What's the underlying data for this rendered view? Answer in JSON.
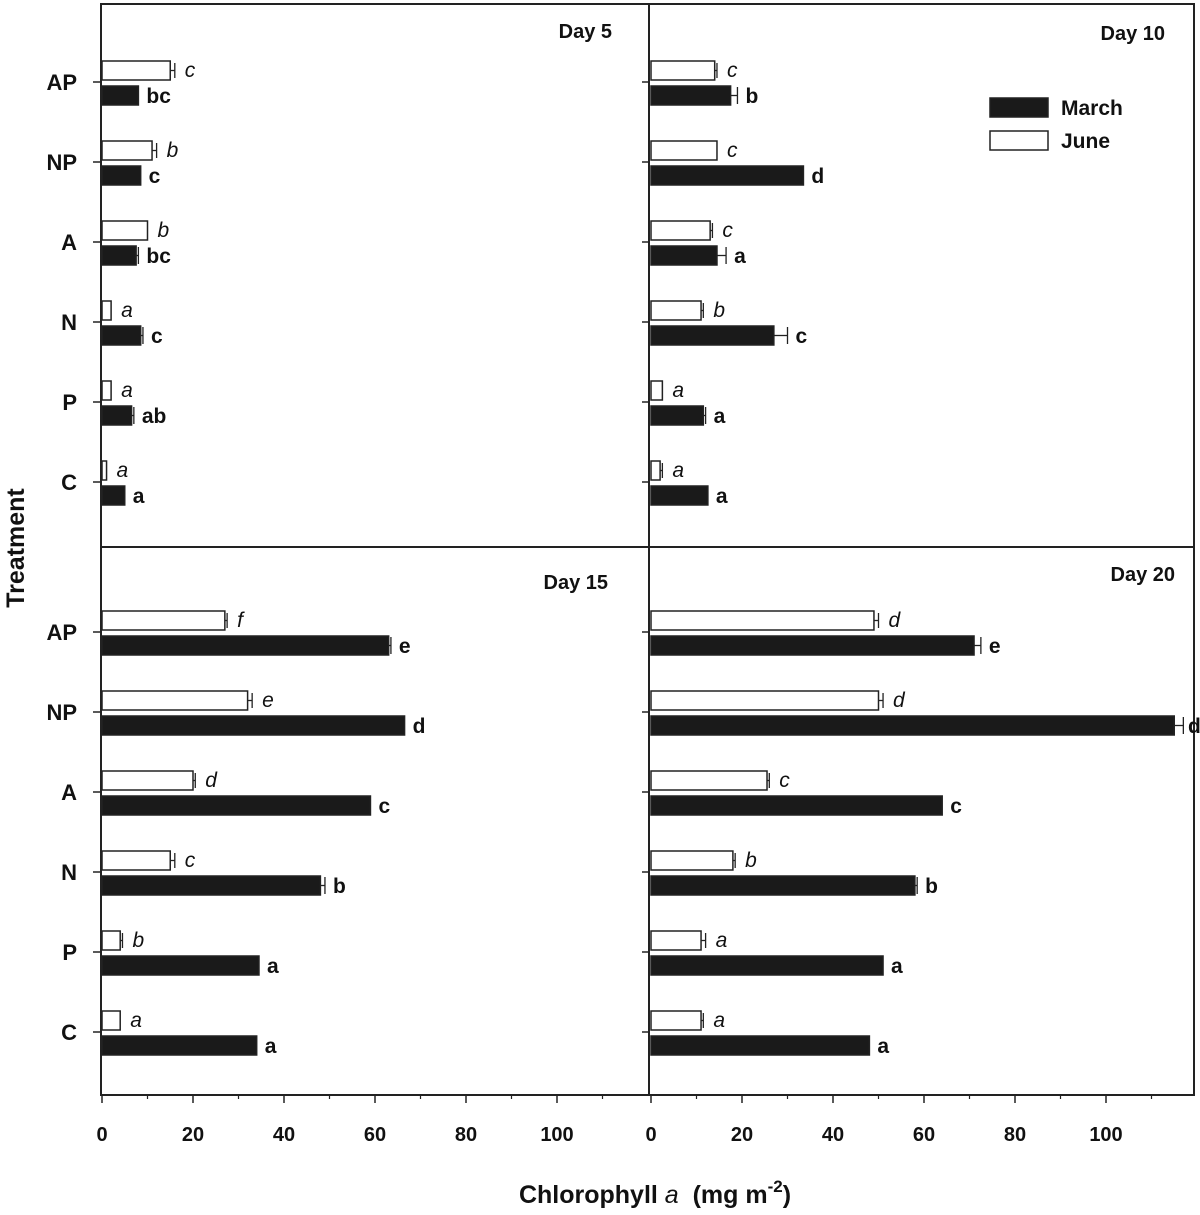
{
  "figure": {
    "ylabel": "Treatment",
    "xlabel_main": "Chlorophyll ",
    "xlabel_italic": "a",
    "xlabel_unit": "  (mg m",
    "xlabel_sup": "-2",
    "xlabel_close": ")",
    "legend": [
      {
        "name": "March",
        "color": "#1a1a1a"
      },
      {
        "name": "June",
        "color": "#ffffff"
      }
    ]
  },
  "chart_data": [
    {
      "type": "bar",
      "orientation": "horizontal",
      "title": "Day 5",
      "categories": [
        "AP",
        "NP",
        "A",
        "N",
        "P",
        "C"
      ],
      "xlim": [
        0,
        120
      ],
      "xticks": [
        0,
        20,
        40,
        60,
        80,
        100
      ],
      "series": [
        {
          "name": "June",
          "values": [
            15,
            11,
            10,
            2,
            2,
            1
          ],
          "errors": [
            1,
            1,
            0,
            0,
            0,
            0
          ],
          "labels": [
            "c",
            "b",
            "b",
            "a",
            "a",
            "a"
          ]
        },
        {
          "name": "March",
          "values": [
            8,
            8.5,
            7.5,
            8.5,
            6.5,
            5
          ],
          "errors": [
            0,
            0,
            0.5,
            0.5,
            0.5,
            0
          ],
          "labels": [
            "bc",
            "c",
            "bc",
            "c",
            "ab",
            "a"
          ]
        }
      ]
    },
    {
      "type": "bar",
      "orientation": "horizontal",
      "title": "Day 10",
      "categories": [
        "AP",
        "NP",
        "A",
        "N",
        "P",
        "C"
      ],
      "xlim": [
        0,
        120
      ],
      "xticks": [
        0,
        20,
        40,
        60,
        80,
        100
      ],
      "series": [
        {
          "name": "June",
          "values": [
            14,
            14.5,
            13,
            11,
            2.5,
            2
          ],
          "errors": [
            0.5,
            0,
            0.5,
            0.5,
            0,
            0.5
          ],
          "labels": [
            "c",
            "c",
            "c",
            "b",
            "a",
            "a"
          ]
        },
        {
          "name": "March",
          "values": [
            17.5,
            33.5,
            14.5,
            27,
            11.5,
            12.5
          ],
          "errors": [
            1.5,
            0,
            2,
            3,
            0.5,
            0
          ],
          "labels": [
            "b",
            "d",
            "a",
            "c",
            "a",
            "a"
          ]
        }
      ]
    },
    {
      "type": "bar",
      "orientation": "horizontal",
      "title": "Day 15",
      "categories": [
        "AP",
        "NP",
        "A",
        "N",
        "P",
        "C"
      ],
      "xlim": [
        0,
        120
      ],
      "xticks": [
        0,
        20,
        40,
        60,
        80,
        100
      ],
      "series": [
        {
          "name": "June",
          "values": [
            27,
            32,
            20,
            15,
            4,
            4
          ],
          "errors": [
            0.5,
            1,
            0.5,
            1,
            0.5,
            0
          ],
          "labels": [
            "f",
            "e",
            "d",
            "c",
            "b",
            "a"
          ]
        },
        {
          "name": "March",
          "values": [
            63,
            66.5,
            59,
            48,
            34.5,
            34
          ],
          "errors": [
            0.5,
            0,
            0,
            1,
            0,
            0
          ],
          "labels": [
            "e",
            "d",
            "c",
            "b",
            "a",
            "a"
          ]
        }
      ]
    },
    {
      "type": "bar",
      "orientation": "horizontal",
      "title": "Day 20",
      "categories": [
        "AP",
        "NP",
        "A",
        "N",
        "P",
        "C"
      ],
      "xlim": [
        0,
        120
      ],
      "xticks": [
        0,
        20,
        40,
        60,
        80,
        100
      ],
      "series": [
        {
          "name": "June",
          "values": [
            49,
            50,
            25.5,
            18,
            11,
            11
          ],
          "errors": [
            1,
            1,
            0.5,
            0.5,
            1,
            0.5
          ],
          "labels": [
            "d",
            "d",
            "c",
            "b",
            "a",
            "a"
          ]
        },
        {
          "name": "March",
          "values": [
            71,
            115,
            64,
            58,
            51,
            48
          ],
          "errors": [
            1.5,
            2,
            0,
            0.5,
            0,
            0
          ],
          "labels": [
            "e",
            "d",
            "c",
            "b",
            "a",
            "a"
          ]
        }
      ]
    }
  ]
}
